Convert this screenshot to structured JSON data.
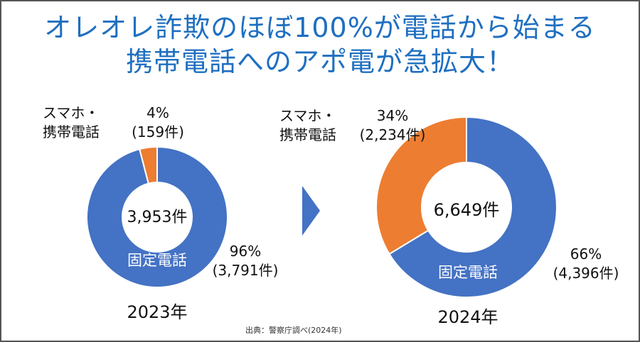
{
  "title": {
    "line1": "オレオレ詐欺のほぼ100%が電話から始まる",
    "line2": "携帯電話へのアポ電が急拡大！"
  },
  "colors": {
    "title": "#1F6FC0",
    "landline": "#4472C4",
    "mobile": "#ED7D31",
    "arrow": "#4472C4"
  },
  "chart_data": [
    {
      "type": "pie",
      "style": "donut",
      "year_label": "2023年",
      "total_label": "3,953件",
      "slices": [
        {
          "category_line1": "",
          "category_line2": "固定電話",
          "value": 3791,
          "percent_label": "96%",
          "count_label": "(3,791件)"
        },
        {
          "category_line1": "スマホ・",
          "category_line2": "携帯電話",
          "value": 159,
          "percent_label": "4%",
          "count_label": "(159件)"
        }
      ]
    },
    {
      "type": "pie",
      "style": "donut",
      "year_label": "2024年",
      "total_label": "6,649件",
      "slices": [
        {
          "category_line1": "",
          "category_line2": "固定電話",
          "value": 4396,
          "percent_label": "66%",
          "count_label": "(4,396件)"
        },
        {
          "category_line1": "スマホ・",
          "category_line2": "携帯電話",
          "value": 2234,
          "percent_label": "34%",
          "count_label": "(2,234件)"
        }
      ]
    }
  ],
  "source": "出典：警察庁調べ(2024年)"
}
